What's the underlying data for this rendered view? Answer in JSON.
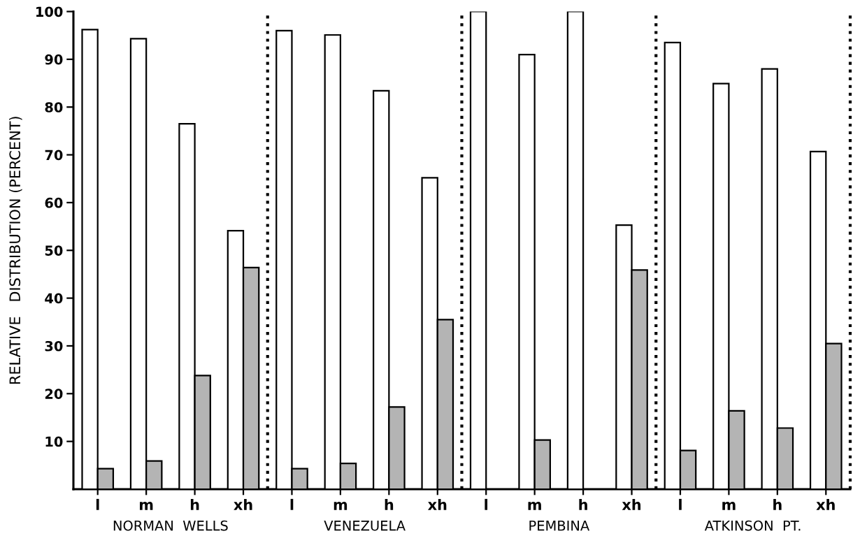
{
  "chart_data": {
    "type": "bar",
    "categories": [
      "l",
      "m",
      "h",
      "xh",
      "l",
      "m",
      "h",
      "xh",
      "l",
      "m",
      "h",
      "xh",
      "l",
      "m",
      "h",
      "xh"
    ],
    "series": [
      {
        "color": "#ffffff",
        "values": [
          96.2,
          94.3,
          76.5,
          54.1,
          96.0,
          95.1,
          83.4,
          65.2,
          100,
          91.0,
          100,
          55.3,
          93.5,
          84.9,
          88.0,
          70.7
        ]
      },
      {
        "color": "#b4b4b4",
        "values": [
          4.3,
          5.9,
          23.8,
          46.4,
          4.3,
          5.4,
          17.2,
          35.5,
          null,
          10.3,
          null,
          45.9,
          8.1,
          16.4,
          12.8,
          30.5
        ]
      }
    ],
    "ylabel": "RELATIVE   DISTRIBUTION (PERCENT)",
    "ylim": [
      0,
      100
    ],
    "yticks": [
      10,
      20,
      30,
      40,
      50,
      60,
      70,
      80,
      90,
      100
    ],
    "annotations": [
      "NORMAN  WELLS",
      "VENEZUELA",
      "PEMBINA",
      "ATKINSON  PT."
    ],
    "grid": false,
    "legend": false
  }
}
